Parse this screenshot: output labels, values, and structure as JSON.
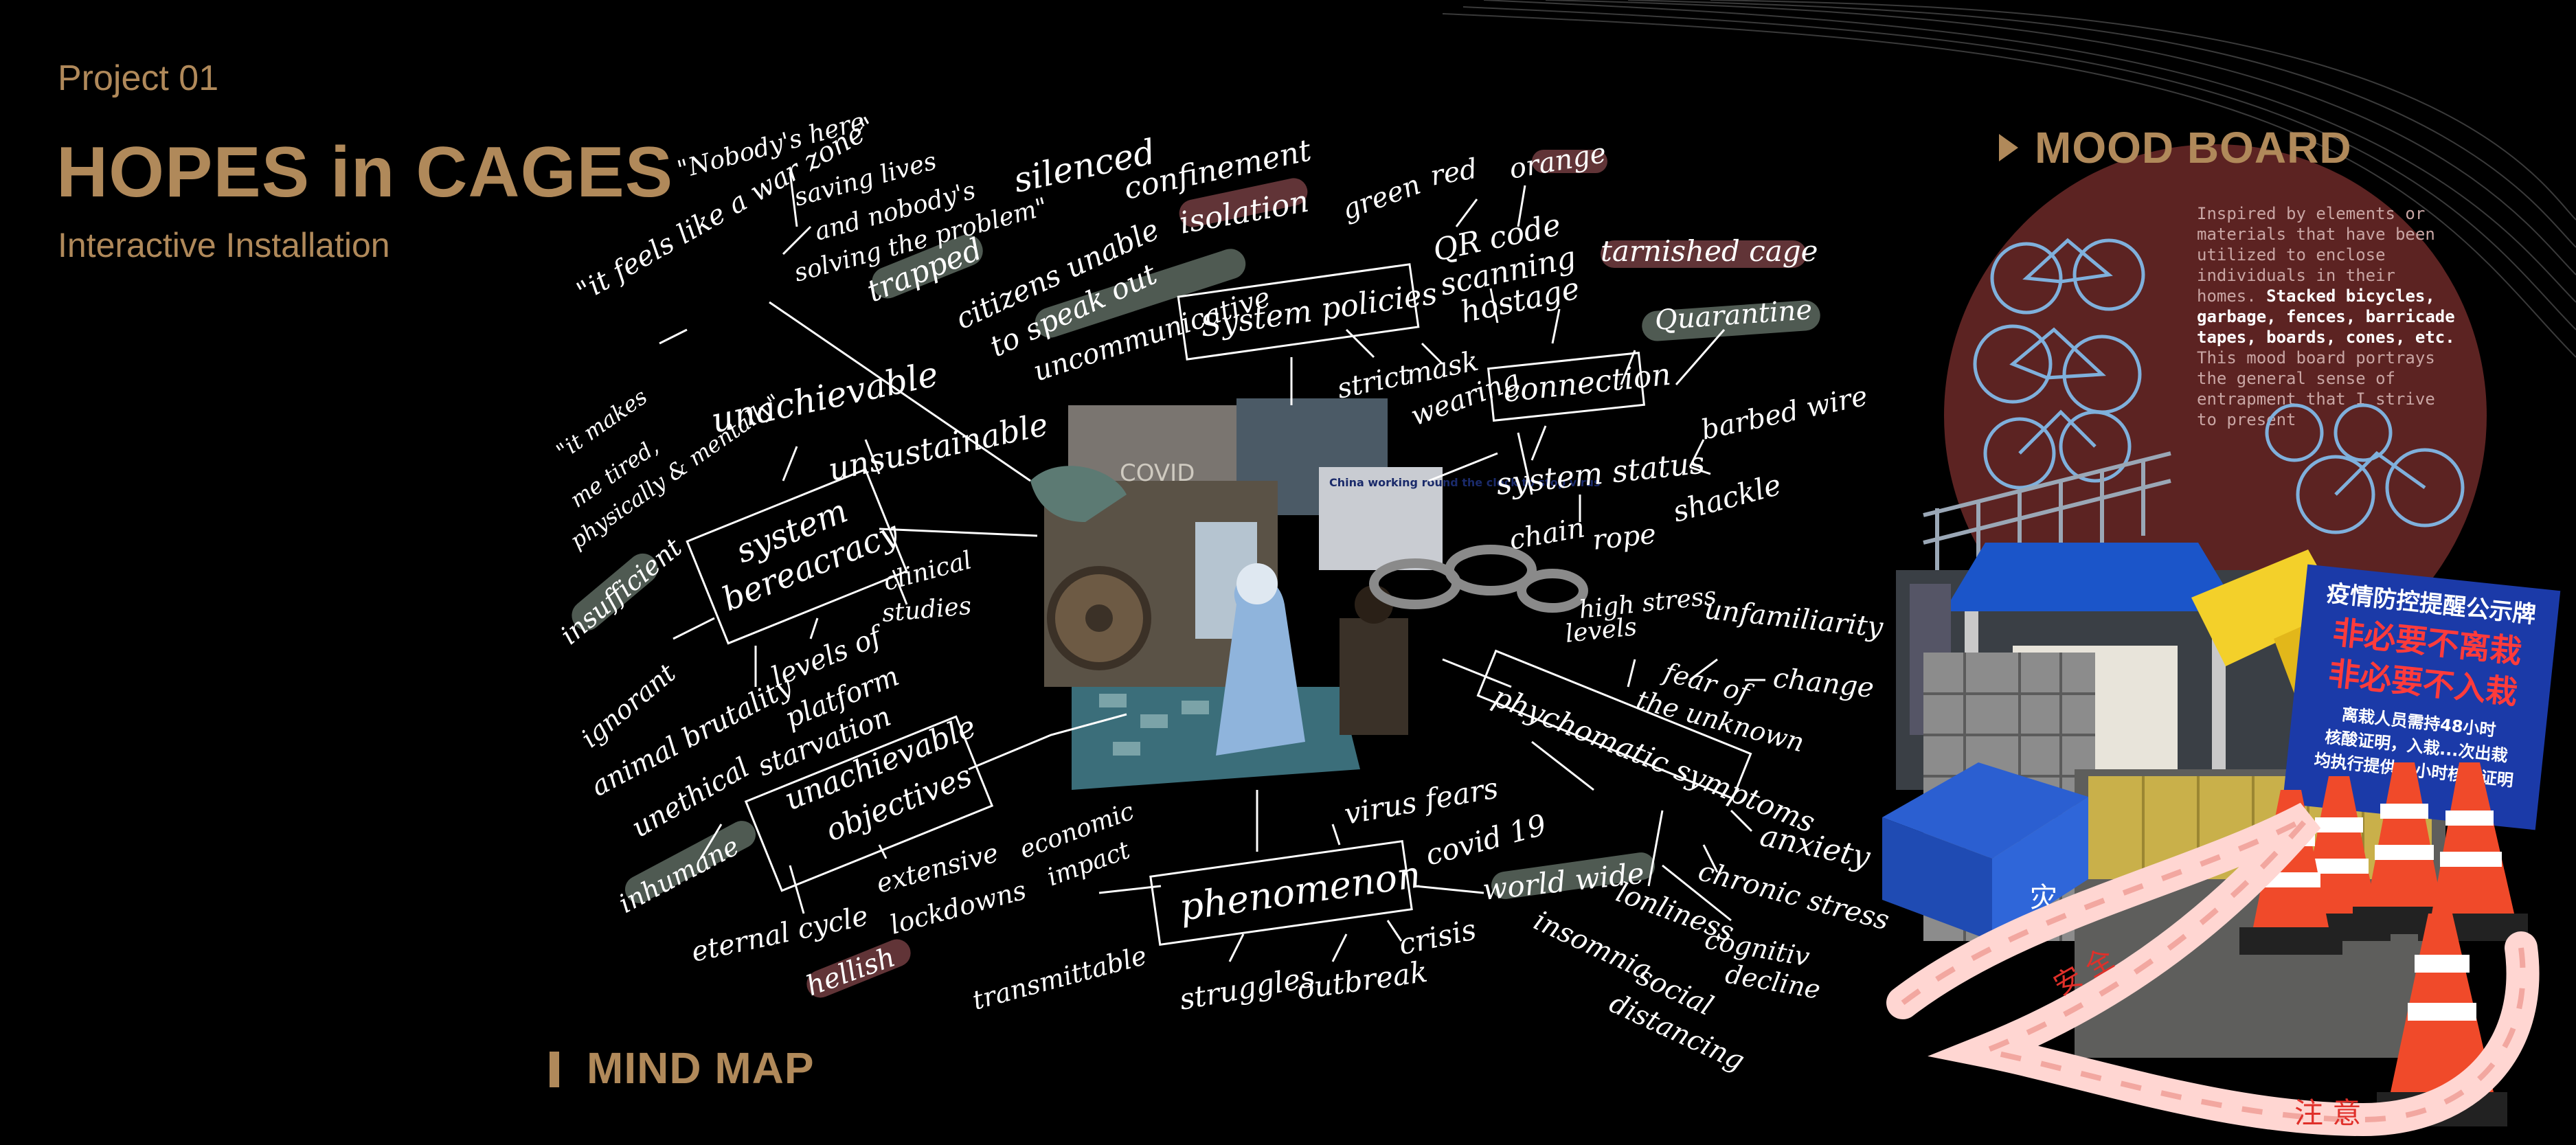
{
  "header": {
    "project": "Project 01",
    "title": "HOPES in CAGES",
    "subtitle": "Interactive Installation"
  },
  "mood_board": {
    "title": "MOOD BOARD",
    "description_plain": "Inspired by elements or materials that have been utilized to enclose individuals in their homes.",
    "description_bold": "Stacked bicycles, garbage, fences, barricade tapes, boards, cones, etc.",
    "description_rest": "This mood board portrays the general sense of entrapment that I strive to present",
    "sign_heading": "疫情防控提醒公示牌",
    "sign_line1": "非必要不离栽",
    "sign_line2": "非必要不入栽",
    "sign_small1": "离栽人员需持48小时",
    "sign_small2": "核酸证明，入栽...次出栽",
    "sign_small3": "均执行提供...小时核酸证明",
    "tape_text_1": "安 全",
    "tape_text_2": "注 意",
    "tent_text": "灾"
  },
  "mind_map": {
    "title": "MIND MAP",
    "center_caption": "China working round the clock to stop virus",
    "center_sign": "COVID",
    "labels": {
      "quote_war": "\"it feels like a war zone\"",
      "quote_nobody1": "\"Nobody's here",
      "quote_nobody2": "saving lives",
      "quote_nobody3": "and nobody's",
      "quote_nobody4": "solving the problem\"",
      "quote_tired1": "\"it makes",
      "quote_tired2": "me tired,",
      "quote_tired3": "physically & mentally\"",
      "silenced": "silenced",
      "confinement": "confinement",
      "isolation": "isolation",
      "trapped": "trapped",
      "citizens1": "citizens unable",
      "citizens2": "to speak out",
      "uncommunicative": "uncommunicative",
      "system_policies": "System policies",
      "green": "green",
      "red": "red",
      "orange": "orange",
      "qr1": "QR code",
      "qr2": "scanning",
      "qr3": "hostage",
      "tarnished_cage": "tarnished cage",
      "quarantine": "Quarantine",
      "strict": "strict",
      "mask1": "mask",
      "mask2": "wearing",
      "connection": "connection",
      "unachievable": "unachievable",
      "unsustainable": "unsustainable",
      "system_bureaucracy1": "system",
      "system_bureaucracy2": "bereacracy",
      "insufficient": "insufficient",
      "clinical1": "clinical",
      "clinical2": "studies",
      "system_status": "system status",
      "barbed_wire": "barbed wire",
      "chain": "chain",
      "rope": "rope",
      "shackle": "shackle",
      "high_stress1": "high stress",
      "high_stress2": "levels",
      "unfamiliarity": "unfamiliarity",
      "change": "change",
      "fear1": "fear of",
      "fear2": "the unknown",
      "psychomatic": "phychomatic symptoms",
      "ignorant": "ignorant",
      "animal_brutality": "animal brutality",
      "levels1": "levels of",
      "levels2": "platform",
      "starvation": "starvation",
      "unethical": "unethical",
      "unachievable_obj1": "unachievable",
      "unachievable_obj2": "objectives",
      "inhumane": "inhumane",
      "extensive1": "extensive",
      "extensive2": "lockdowns",
      "economic1": "economic",
      "economic2": "impact",
      "eternal_cycle": "eternal cycle",
      "hellish": "hellish",
      "virus_fears": "virus fears",
      "phenomenon": "phenomenon",
      "covid19": "covid 19",
      "world_wide": "world wide",
      "anxiety": "anxiety",
      "chronic_stress": "chronic stress",
      "loneliness": "lonliness",
      "cognitive1": "cognitiv",
      "cognitive2": "decline",
      "insomnia": "insomnia",
      "social1": "social",
      "social2": "distancing",
      "transmittable": "transmittable",
      "struggles": "struggles",
      "outbreak": "outbreak",
      "crisis": "crisis"
    }
  }
}
